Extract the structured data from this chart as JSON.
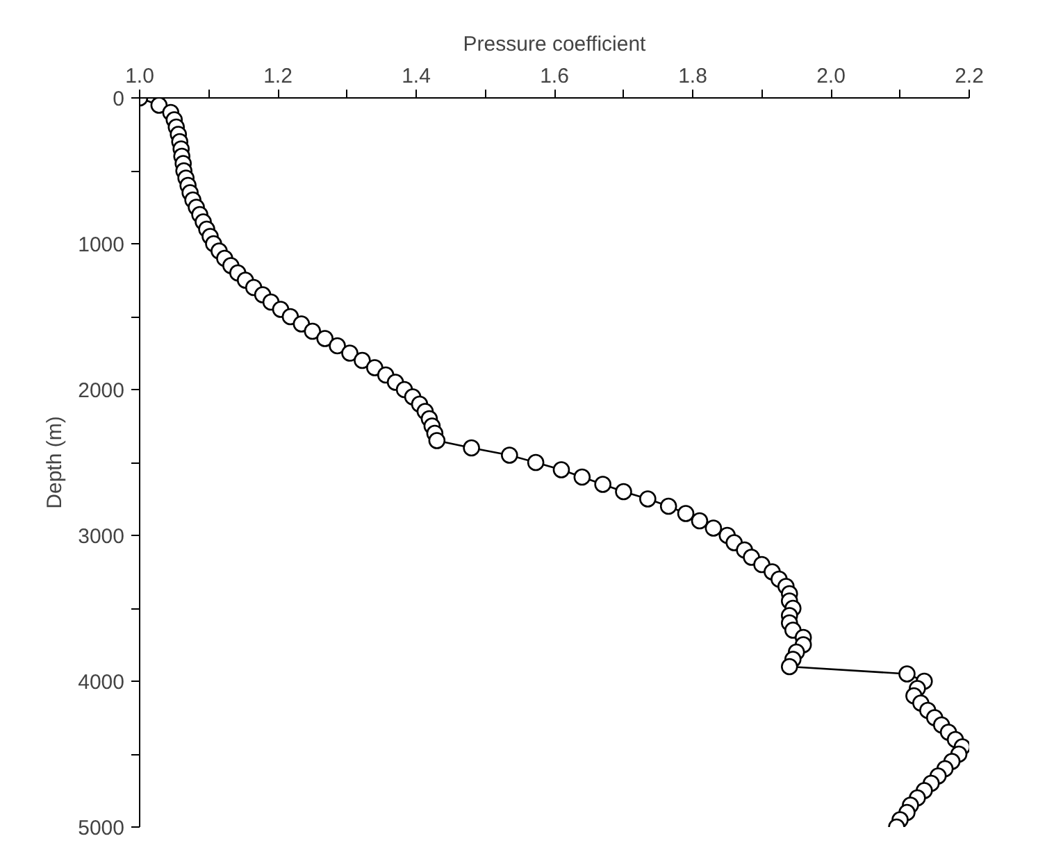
{
  "chart_data": {
    "type": "line",
    "marker": "circle",
    "line_style": "solid",
    "xlabel": "Pressure coefficient",
    "ylabel": "Depth (m)",
    "xlim": [
      1.0,
      2.2
    ],
    "ylim": [
      5000,
      0
    ],
    "xticks": [
      {
        "value": 1.0,
        "label": "1.0"
      },
      {
        "value": 1.1,
        "label": null
      },
      {
        "value": 1.2,
        "label": "1.2"
      },
      {
        "value": 1.3,
        "label": null
      },
      {
        "value": 1.4,
        "label": "1.4"
      },
      {
        "value": 1.5,
        "label": null
      },
      {
        "value": 1.6,
        "label": "1.6"
      },
      {
        "value": 1.7,
        "label": null
      },
      {
        "value": 1.8,
        "label": "1.8"
      },
      {
        "value": 1.9,
        "label": null
      },
      {
        "value": 2.0,
        "label": "2.0"
      },
      {
        "value": 2.1,
        "label": null
      },
      {
        "value": 2.2,
        "label": "2.2"
      }
    ],
    "yticks": [
      0,
      {
        "value": 500,
        "label": null
      },
      1000,
      {
        "value": 1500,
        "label": null
      },
      2000,
      {
        "value": 2500,
        "label": null
      },
      3000,
      {
        "value": 3500,
        "label": null
      },
      4000,
      {
        "value": 4500,
        "label": null
      },
      5000
    ],
    "grid": false,
    "series": [
      {
        "color": "#000000",
        "x": [
          1.0,
          1.028,
          1.045,
          1.05,
          1.053,
          1.056,
          1.058,
          1.06,
          1.061,
          1.063,
          1.064,
          1.067,
          1.07,
          1.073,
          1.077,
          1.082,
          1.087,
          1.092,
          1.097,
          1.102,
          1.107,
          1.115,
          1.123,
          1.132,
          1.142,
          1.153,
          1.165,
          1.178,
          1.19,
          1.204,
          1.218,
          1.234,
          1.25,
          1.268,
          1.286,
          1.304,
          1.322,
          1.34,
          1.356,
          1.37,
          1.383,
          1.395,
          1.405,
          1.413,
          1.419,
          1.423,
          1.427,
          1.43,
          1.48,
          1.535,
          1.573,
          1.61,
          1.64,
          1.67,
          1.7,
          1.735,
          1.765,
          1.79,
          1.81,
          1.83,
          1.85,
          1.86,
          1.875,
          1.885,
          1.9,
          1.915,
          1.925,
          1.935,
          1.94,
          1.94,
          1.945,
          1.94,
          1.94,
          1.945,
          1.96,
          1.96,
          1.95,
          1.945,
          1.94,
          2.11,
          2.135,
          2.125,
          2.12,
          2.13,
          2.14,
          2.15,
          2.16,
          2.17,
          2.18,
          2.19,
          2.185,
          2.175,
          2.165,
          2.155,
          2.145,
          2.135,
          2.125,
          2.115,
          2.11,
          2.1,
          2.095
        ],
        "values": [
          0,
          50,
          100,
          150,
          200,
          250,
          300,
          350,
          400,
          450,
          500,
          550,
          600,
          650,
          700,
          750,
          800,
          850,
          900,
          950,
          1000,
          1050,
          1100,
          1150,
          1200,
          1250,
          1300,
          1350,
          1400,
          1450,
          1500,
          1550,
          1600,
          1650,
          1700,
          1750,
          1800,
          1850,
          1900,
          1950,
          2000,
          2050,
          2100,
          2150,
          2200,
          2250,
          2300,
          2350,
          2400,
          2450,
          2500,
          2550,
          2600,
          2650,
          2700,
          2750,
          2800,
          2850,
          2900,
          2950,
          3000,
          3050,
          3100,
          3150,
          3200,
          3250,
          3300,
          3350,
          3400,
          3450,
          3500,
          3550,
          3600,
          3650,
          3700,
          3750,
          3800,
          3850,
          3900,
          3950,
          4000,
          4050,
          4100,
          4150,
          4200,
          4250,
          4300,
          4350,
          4400,
          4450,
          4500,
          4550,
          4600,
          4650,
          4700,
          4750,
          4800,
          4850,
          4900,
          4950,
          5000
        ]
      }
    ]
  }
}
